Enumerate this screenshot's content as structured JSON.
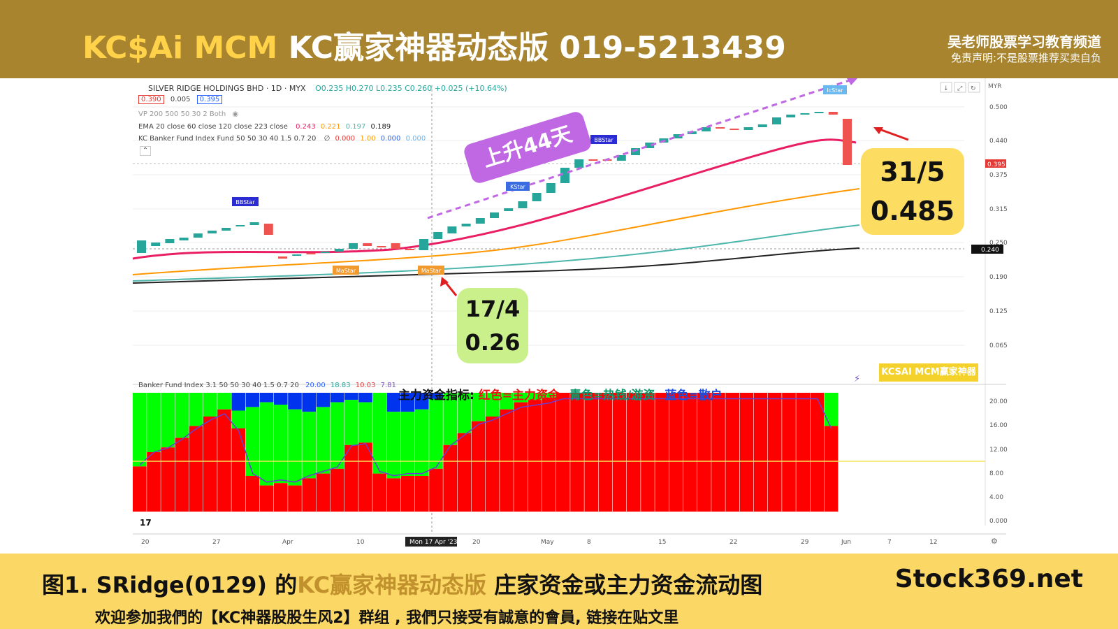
{
  "banner": {
    "title_part1": "KC$Ai MCM",
    "title_part2": "KC赢家神器动态版 019-5213439",
    "channel": "吴老师股票学习教育频道",
    "disclaimer": "免责声明:不是股票推荐买卖自负"
  },
  "chart_header": {
    "symbol_line": "SILVER RIDGE HOLDINGS BHD · 1D · MYX",
    "ohlc": "O0.235 H0.270 L0.235 C0.260 +0.025 (+10.64%)",
    "bid": "0.390",
    "spread": "0.005",
    "ask": "0.395",
    "vp_line": "VP 200 500 50 30 2 Both",
    "ema_line": "EMA 20 close 60 close 120 close 223 close",
    "ema_vals": [
      "0.243",
      "0.221",
      "0.197",
      "0.189"
    ],
    "kc_line": "KC Banker Fund Index Fund 50 50 30 40 1.5 0.7 20",
    "kc_vals": [
      "0.000",
      "1.00",
      "0.000",
      "0.000"
    ],
    "currency": "MYR"
  },
  "price_axis": {
    "ticks": [
      "0.500",
      "0.440",
      "0.375",
      "0.315",
      "0.250",
      "0.190",
      "0.125",
      "0.065"
    ],
    "current_tag": "0.395",
    "cursor_tag": "0.240"
  },
  "indicator_header": {
    "label": "Banker Fund Index 3.1 50 50 30 40 1.5 0.7 20",
    "vals": [
      "20.00",
      "18.83",
      "10.03",
      "7.81"
    ]
  },
  "indicator_axis": {
    "ticks": [
      "20.00",
      "16.00",
      "12.00",
      "8.00",
      "4.00",
      "0.000"
    ]
  },
  "time_axis": {
    "labels": [
      "20",
      "27",
      "Apr",
      "10",
      "Mon 17 Apr '23",
      "20",
      "May",
      "8",
      "15",
      "22",
      "29",
      "Jun",
      "7",
      "12"
    ]
  },
  "annotations": {
    "rise": "上升44天",
    "may_date": "31/5",
    "may_price": "0.485",
    "apr_date": "17/4",
    "apr_price": "0.26",
    "signals": [
      "BBStar",
      "MaStar",
      "MaStar",
      "BBStar",
      "KStar",
      "IcStar"
    ]
  },
  "legend": {
    "prefix": "主力资金指标:",
    "red": "红色=主力资金",
    "teal": "青色=热钱/游资",
    "blue": "蓝色=散户"
  },
  "watermark": "KCSAI MCM赢家神器",
  "colors": {
    "banner": "#a8842f",
    "title_gold": "#ffd24a",
    "bottom": "#fbd765",
    "bull": "#26a69a",
    "bear": "#ef5350",
    "ema20": "#e91e63",
    "ema60": "#ff9800",
    "ema120": "#4db6ac",
    "ema223": "#222222",
    "main_fund": "#ff0000",
    "hot_money": "#00ff00",
    "retail": "#0033ee"
  },
  "footer": {
    "caption_a": "图1. SRidge(0129) 的",
    "caption_b": "KC赢家神器动态版",
    "caption_c": " 庄家资金或主力资金流动图",
    "site": "Stock369.net",
    "invite": "欢迎参加我們的【KC神器股股生风2】群组 , 我們只接受有誠意的會員, 链接在贴文里"
  }
}
